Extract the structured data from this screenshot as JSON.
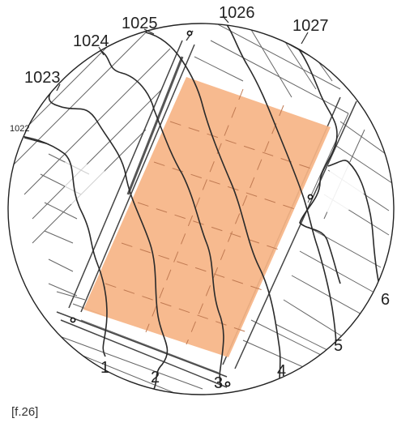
{
  "figure": {
    "caption": "[f.26]",
    "contour_labels": [
      "1022",
      "1023",
      "1024",
      "1025",
      "1026",
      "1027"
    ],
    "section_labels": [
      "1",
      "2",
      "3",
      "4",
      "5",
      "6"
    ],
    "colors": {
      "site_fill": "#f6b486",
      "lines": "#2a2a2a",
      "grid": "#555555",
      "background": "#ffffff"
    }
  }
}
